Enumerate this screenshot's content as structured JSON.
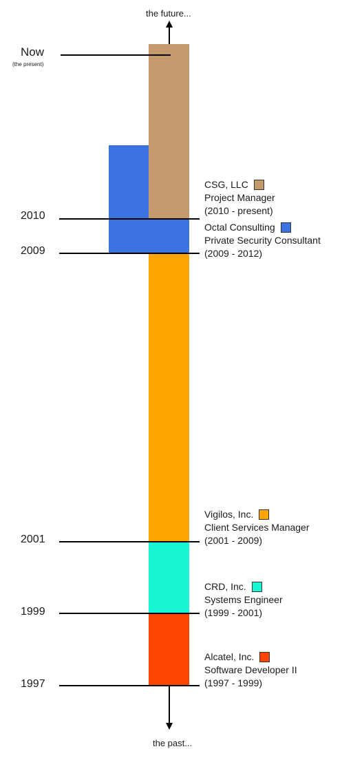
{
  "timeline": {
    "future_label": "the future...",
    "past_label": "the past...",
    "now_label": "Now",
    "now_sublabel": "(the present)",
    "years": [
      "2010",
      "2009",
      "2001",
      "1999",
      "1997"
    ]
  },
  "jobs": [
    {
      "company": "CSG, LLC",
      "title": "Project Manager",
      "period": "(2010 - present)",
      "color": "#c49a6c"
    },
    {
      "company": "Octal Consulting",
      "title": "Private Security Consultant",
      "period": "(2009 - 2012)",
      "color": "#3b73e0"
    },
    {
      "company": "Vigilos, Inc.",
      "title": "Client Services Manager",
      "period": "(2001 - 2009)",
      "color": "#ffa500"
    },
    {
      "company": "CRD, Inc.",
      "title": "Systems Engineer",
      "period": "(1999 - 2001)",
      "color": "#19f5d2"
    },
    {
      "company": "Alcatel, Inc.",
      "title": "Software Developer II",
      "period": "(1997 - 1999)",
      "color": "#ff4500"
    }
  ]
}
